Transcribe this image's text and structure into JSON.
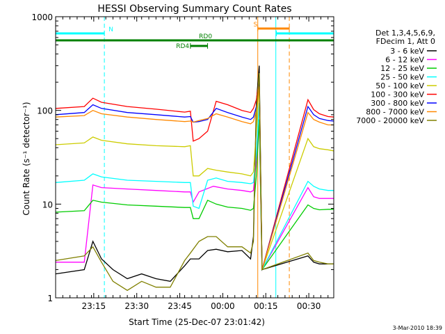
{
  "chart_data": {
    "type": "line",
    "title": "HESSI Observing Summary Count Rates",
    "xlabel": "Start Time (25-Dec-07 23:01:42)",
    "ylabel": "Count Rate (s⁻¹ detector⁻¹)",
    "yscale": "log",
    "ylim": [
      1,
      1000
    ],
    "xlim_minutes": [
      0,
      97
    ],
    "x_ticks": [
      {
        "label": "23:15",
        "t": 13.3
      },
      {
        "label": "23:30",
        "t": 28.3
      },
      {
        "label": "23:45",
        "t": 43.3
      },
      {
        "label": "00:00",
        "t": 58.3
      },
      {
        "label": "00:15",
        "t": 73.3
      },
      {
        "label": "00:30",
        "t": 88.3
      }
    ],
    "y_ticks": [
      {
        "label": "1",
        "v": 1
      },
      {
        "label": "10",
        "v": 10
      },
      {
        "label": "100",
        "v": 100
      },
      {
        "label": "1000",
        "v": 1000
      }
    ],
    "legend_header": [
      "Det 1,3,4,5,6,9,",
      "FDecim 1, Att 0"
    ],
    "legend_position": "right",
    "series": [
      {
        "name": "3 - 6 keV",
        "color": "#000000",
        "x": [
          0,
          10,
          13,
          16,
          20,
          25,
          30,
          35,
          40,
          45,
          47,
          50,
          53,
          56,
          60,
          65,
          68,
          69,
          70,
          71,
          72,
          88,
          90,
          92,
          95,
          97
        ],
        "y": [
          1.8,
          2,
          4,
          2.6,
          2,
          1.6,
          1.8,
          1.6,
          1.5,
          2.2,
          2.6,
          2.6,
          3.2,
          3.3,
          3.1,
          3.2,
          2.6,
          4.5,
          120,
          300,
          2,
          2.8,
          2.4,
          2.3,
          2.3,
          2.3
        ]
      },
      {
        "name": "6 - 12 keV",
        "color": "#ff00ff",
        "x": [
          0,
          10,
          13,
          16,
          25,
          35,
          45,
          47,
          48,
          50,
          55,
          60,
          65,
          68,
          69,
          70,
          71,
          72,
          88,
          90,
          92,
          95,
          97
        ],
        "y": [
          2.4,
          2.4,
          16,
          15,
          14.5,
          14,
          13.5,
          13.5,
          10.5,
          13.5,
          15.5,
          14.5,
          14,
          13.5,
          14,
          30,
          80,
          2,
          15,
          12,
          11.5,
          11.5,
          11.5
        ]
      },
      {
        "name": "12 - 25 keV",
        "color": "#00cc00",
        "x": [
          0,
          10,
          13,
          16,
          25,
          35,
          45,
          47,
          48,
          50,
          53,
          56,
          60,
          65,
          68,
          69,
          70,
          71,
          72,
          88,
          90,
          92,
          95,
          97
        ],
        "y": [
          8.2,
          8.5,
          11,
          10.5,
          9.8,
          9.5,
          9.2,
          9.2,
          7,
          7,
          11,
          10,
          9.3,
          9,
          8.6,
          9,
          20,
          80,
          2,
          9.8,
          9,
          8.7,
          8.8,
          8.8
        ]
      },
      {
        "name": "25 - 50 keV",
        "color": "#00ffff",
        "x": [
          0,
          10,
          13,
          16,
          25,
          35,
          45,
          47,
          48,
          50,
          53,
          56,
          60,
          65,
          68,
          69,
          70,
          71,
          72,
          88,
          90,
          92,
          95,
          97
        ],
        "y": [
          17,
          18,
          21,
          19.5,
          18,
          17.5,
          17,
          17,
          9.5,
          9,
          18,
          19,
          17.5,
          17,
          16.5,
          17,
          35,
          120,
          2,
          17.5,
          15.5,
          14.5,
          14,
          14
        ]
      },
      {
        "name": "50 - 100 keV",
        "color": "#cccc00",
        "x": [
          0,
          10,
          13,
          16,
          25,
          35,
          45,
          47,
          48,
          50,
          53,
          56,
          60,
          65,
          68,
          69,
          70,
          71,
          72,
          88,
          90,
          92,
          95,
          97
        ],
        "y": [
          43,
          45,
          52,
          48,
          44,
          42,
          41,
          42,
          20,
          20,
          24,
          23,
          22,
          21,
          20,
          22,
          60,
          200,
          2,
          50,
          41,
          39,
          38,
          37
        ]
      },
      {
        "name": "100 - 300 keV",
        "color": "#ff0000",
        "x": [
          0,
          10,
          13,
          16,
          25,
          35,
          45,
          47,
          48,
          50,
          53,
          56,
          60,
          65,
          68,
          69,
          70,
          71,
          72,
          88,
          90,
          92,
          95,
          97
        ],
        "y": [
          105,
          110,
          135,
          122,
          110,
          103,
          96,
          98,
          47,
          50,
          60,
          125,
          115,
          100,
          95,
          105,
          130,
          220,
          2,
          130,
          102,
          92,
          86,
          85
        ]
      },
      {
        "name": "300 - 800 keV",
        "color": "#0000ff",
        "x": [
          0,
          10,
          13,
          16,
          25,
          35,
          45,
          47,
          48,
          50,
          53,
          56,
          60,
          65,
          68,
          69,
          70,
          71,
          72,
          88,
          90,
          92,
          95,
          97
        ],
        "y": [
          90,
          95,
          115,
          105,
          95,
          90,
          85,
          86,
          75,
          76,
          80,
          105,
          95,
          85,
          80,
          85,
          110,
          200,
          2,
          110,
          90,
          82,
          78,
          77
        ]
      },
      {
        "name": "800 - 7000 keV",
        "color": "#ff8800",
        "x": [
          0,
          10,
          13,
          16,
          25,
          35,
          45,
          47,
          48,
          50,
          53,
          56,
          60,
          65,
          68,
          69,
          70,
          71,
          72,
          88,
          90,
          92,
          95,
          97
        ],
        "y": [
          85,
          88,
          100,
          92,
          85,
          80,
          76,
          77,
          75,
          78,
          82,
          92,
          85,
          76,
          72,
          76,
          100,
          180,
          2,
          95,
          80,
          75,
          70,
          70
        ]
      },
      {
        "name": "7000 - 20000 keV",
        "color": "#808000",
        "x": [
          0,
          10,
          13,
          16,
          20,
          25,
          30,
          35,
          40,
          45,
          47,
          50,
          53,
          56,
          60,
          65,
          68,
          69,
          70,
          71,
          72,
          88,
          90,
          92,
          95,
          97
        ],
        "y": [
          2.5,
          2.8,
          3.5,
          2.4,
          1.5,
          1.2,
          1.5,
          1.3,
          1.3,
          2.5,
          3,
          4,
          4.5,
          4.5,
          3.5,
          3.5,
          3,
          4,
          100,
          250,
          2,
          3,
          2.5,
          2.4,
          2.3,
          2.3
        ]
      }
    ],
    "flag_bars": [
      {
        "label": "N",
        "color": "#00ffff",
        "segments": [
          [
            0,
            17
          ],
          [
            77,
            97
          ]
        ]
      },
      {
        "label": "S",
        "color": "#ff8800",
        "segments": [
          [
            70.5,
            81.5
          ]
        ]
      },
      {
        "label": "RD0",
        "color": "#008000",
        "segments": [
          [
            0,
            97
          ]
        ]
      },
      {
        "label": "RD4",
        "color": "#008000",
        "segments": [
          [
            47,
            53
          ]
        ]
      }
    ],
    "intervals": [
      {
        "kind": "dashed",
        "color": "#00ffff",
        "t": 17
      },
      {
        "kind": "solid",
        "color": "#00ffff",
        "t": 76.8
      },
      {
        "kind": "solid",
        "color": "#ff8800",
        "t": 70.5
      },
      {
        "kind": "dashed",
        "color": "#ff8800",
        "t": 81.5
      },
      {
        "kind": "dashed",
        "color": "#00ffff",
        "t": 97
      }
    ],
    "grid": false
  },
  "footer_date": "3-Mar-2010 18:39"
}
